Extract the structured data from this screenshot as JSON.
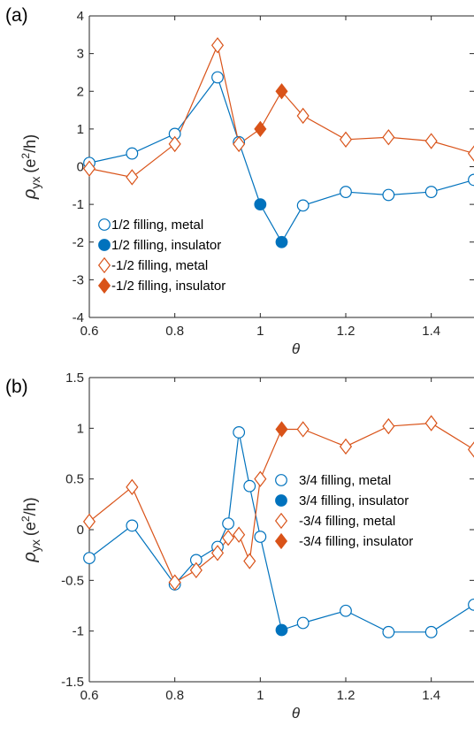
{
  "chart_data": [
    {
      "type": "line",
      "panel_label": "(a)",
      "xlabel": "θ",
      "ylabel": "ρ_yx (e²/h)",
      "ylabel_main": "ρ",
      "ylabel_sub": "yx",
      "ylabel_open": "(e",
      "ylabel_sup": "2",
      "ylabel_close": "/h)",
      "xlim": [
        0.6,
        1.5
      ],
      "ylim": [
        -4,
        4
      ],
      "xticks": [
        0.6,
        0.8,
        1,
        1.2,
        1.4
      ],
      "xtick_labels": [
        "0.6",
        "0.8",
        "1",
        "1.2",
        "1.4"
      ],
      "yticks": [
        -4,
        -3,
        -2,
        -1,
        0,
        1,
        2,
        3,
        4
      ],
      "ytick_labels": [
        "-4",
        "-3",
        "-2",
        "-1",
        "0",
        "1",
        "2",
        "3",
        "4"
      ],
      "grid": false,
      "legend_position": "bottom-left",
      "series": [
        {
          "name": "1/2 filling, metal",
          "color": "#0072BD",
          "marker": "circle-open",
          "x": [
            0.6,
            0.7,
            0.8,
            0.9,
            0.95,
            1.1,
            1.2,
            1.3,
            1.4,
            1.5
          ],
          "y": [
            0.1,
            0.35,
            0.87,
            2.37,
            0.65,
            -1.03,
            -0.67,
            -0.75,
            -0.67,
            -0.35
          ]
        },
        {
          "name": "1/2 filling, insulator",
          "color": "#0072BD",
          "marker": "circle-filled",
          "x": [
            1.0,
            1.05
          ],
          "y": [
            -1.0,
            -2.0
          ]
        },
        {
          "name": "-1/2 filling, metal",
          "color": "#D95319",
          "marker": "diamond-open",
          "x": [
            0.6,
            0.7,
            0.8,
            0.9,
            0.95,
            1.1,
            1.2,
            1.3,
            1.4,
            1.5
          ],
          "y": [
            -0.05,
            -0.28,
            0.6,
            3.22,
            0.6,
            1.35,
            0.72,
            0.78,
            0.68,
            0.35
          ]
        },
        {
          "name": "-1/2 filling, insulator",
          "color": "#D95319",
          "marker": "diamond-filled",
          "x": [
            1.0,
            1.05
          ],
          "y": [
            1.0,
            2.0
          ]
        }
      ],
      "lines": [
        {
          "color": "#0072BD",
          "x": [
            0.6,
            0.7,
            0.8,
            0.9,
            0.95,
            1.0,
            1.05,
            1.1,
            1.2,
            1.3,
            1.4,
            1.5
          ],
          "y": [
            0.1,
            0.35,
            0.87,
            2.37,
            0.65,
            -1.0,
            -2.0,
            -1.03,
            -0.67,
            -0.75,
            -0.67,
            -0.35
          ]
        },
        {
          "color": "#D95319",
          "x": [
            0.6,
            0.7,
            0.8,
            0.9,
            0.95,
            1.0,
            1.05,
            1.1,
            1.2,
            1.3,
            1.4,
            1.5
          ],
          "y": [
            -0.05,
            -0.28,
            0.6,
            3.22,
            0.6,
            1.0,
            2.0,
            1.35,
            0.72,
            0.78,
            0.68,
            0.35
          ]
        }
      ]
    },
    {
      "type": "line",
      "panel_label": "(b)",
      "xlabel": "θ",
      "ylabel": "ρ_yx (e²/h)",
      "ylabel_main": "ρ",
      "ylabel_sub": "yx",
      "ylabel_open": "(e",
      "ylabel_sup": "2",
      "ylabel_close": "/h)",
      "xlim": [
        0.6,
        1.5
      ],
      "ylim": [
        -1.5,
        1.5
      ],
      "xticks": [
        0.6,
        0.8,
        1,
        1.2,
        1.4
      ],
      "xtick_labels": [
        "0.6",
        "0.8",
        "1",
        "1.2",
        "1.4"
      ],
      "yticks": [
        -1.5,
        -1,
        -0.5,
        0,
        0.5,
        1,
        1.5
      ],
      "ytick_labels": [
        "-1.5",
        "-1",
        "-0.5",
        "0",
        "0.5",
        "1",
        "1.5"
      ],
      "grid": false,
      "legend_position": "right",
      "series": [
        {
          "name": "3/4 filling, metal",
          "color": "#0072BD",
          "marker": "circle-open",
          "x": [
            0.6,
            0.7,
            0.8,
            0.85,
            0.9,
            0.925,
            0.95,
            0.975,
            1.0,
            1.1,
            1.2,
            1.3,
            1.4,
            1.5
          ],
          "y": [
            -0.28,
            0.04,
            -0.54,
            -0.3,
            -0.17,
            0.06,
            0.96,
            0.43,
            -0.07,
            -0.92,
            -0.8,
            -1.01,
            -1.01,
            -0.74
          ]
        },
        {
          "name": "3/4 filling, insulator",
          "color": "#0072BD",
          "marker": "circle-filled",
          "x": [
            1.05
          ],
          "y": [
            -0.99
          ]
        },
        {
          "name": "-3/4 filling, metal",
          "color": "#D95319",
          "marker": "diamond-open",
          "x": [
            0.6,
            0.7,
            0.8,
            0.85,
            0.9,
            0.925,
            0.95,
            0.975,
            1.0,
            1.1,
            1.2,
            1.3,
            1.4,
            1.5
          ],
          "y": [
            0.08,
            0.42,
            -0.52,
            -0.4,
            -0.23,
            -0.08,
            -0.05,
            -0.31,
            0.5,
            0.99,
            0.82,
            1.02,
            1.05,
            0.79
          ]
        },
        {
          "name": "-3/4 filling, insulator",
          "color": "#D95319",
          "marker": "diamond-filled",
          "x": [
            1.05
          ],
          "y": [
            0.99
          ]
        }
      ],
      "lines": [
        {
          "color": "#0072BD",
          "x": [
            0.6,
            0.7,
            0.8,
            0.85,
            0.9,
            0.925,
            0.95,
            0.975,
            1.0,
            1.05,
            1.1,
            1.2,
            1.3,
            1.4,
            1.5
          ],
          "y": [
            -0.28,
            0.04,
            -0.54,
            -0.3,
            -0.17,
            0.06,
            0.96,
            0.43,
            -0.07,
            -0.99,
            -0.92,
            -0.8,
            -1.01,
            -1.01,
            -0.74
          ]
        },
        {
          "color": "#D95319",
          "x": [
            0.6,
            0.7,
            0.8,
            0.85,
            0.9,
            0.925,
            0.95,
            0.975,
            1.0,
            1.05,
            1.1,
            1.2,
            1.3,
            1.4,
            1.5
          ],
          "y": [
            0.08,
            0.42,
            -0.52,
            -0.4,
            -0.23,
            -0.08,
            -0.05,
            -0.31,
            0.5,
            0.99,
            0.99,
            0.82,
            1.02,
            1.05,
            0.79
          ]
        }
      ]
    }
  ]
}
